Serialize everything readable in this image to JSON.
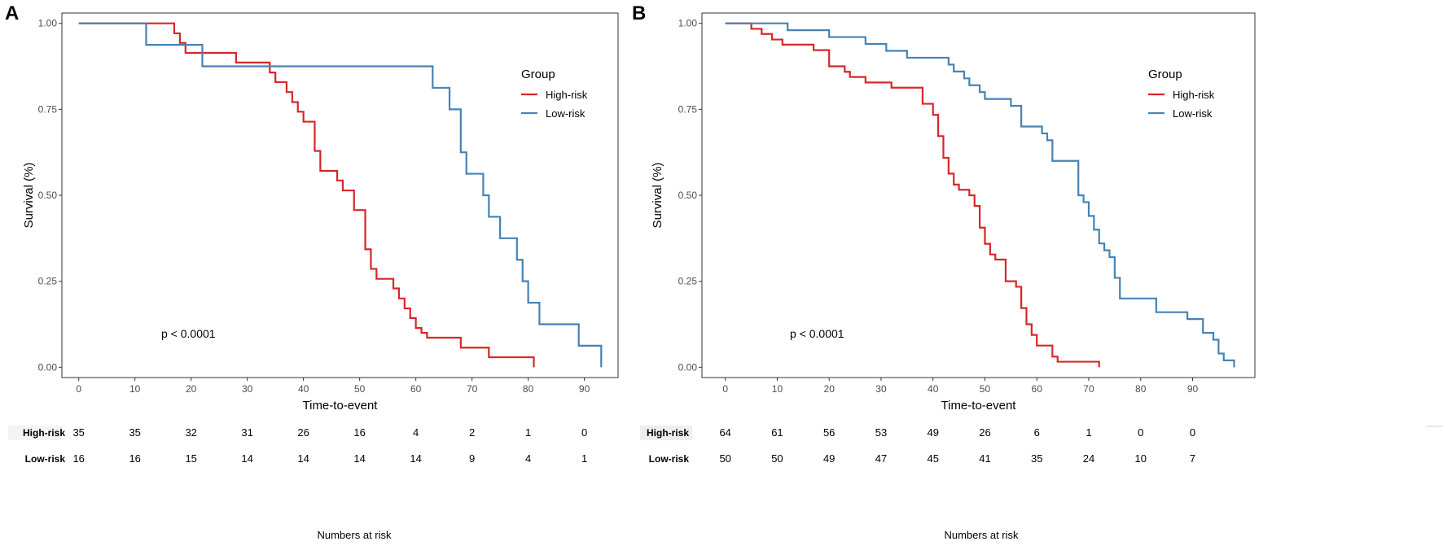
{
  "chart_data": [
    {
      "type": "line",
      "panel": "A",
      "title": "",
      "xlabel": "Time-to-event",
      "ylabel": "Survival (%)",
      "xlim": [
        -3,
        96
      ],
      "ylim": [
        -0.03,
        1.03
      ],
      "x_ticks": [
        0,
        10,
        20,
        30,
        40,
        50,
        60,
        70,
        80,
        90
      ],
      "x_tick_labels": [
        "0",
        "10",
        "20",
        "30",
        "40",
        "50",
        "60",
        "70",
        "80",
        "90"
      ],
      "y_ticks": [
        0,
        0.25,
        0.5,
        0.75,
        1.0
      ],
      "y_tick_labels": [
        "0.00",
        "0.25",
        "0.50",
        "0.75",
        "1.00"
      ],
      "grid": false,
      "legend": {
        "title": "Group",
        "position": "right"
      },
      "annotation": "p < 0.0001",
      "series": [
        {
          "name": "High-risk",
          "color": "#d62728",
          "steps": [
            [
              0,
              1.0
            ],
            [
              17,
              0.971
            ],
            [
              18,
              0.943
            ],
            [
              19,
              0.914
            ],
            [
              28,
              0.886
            ],
            [
              34,
              0.857
            ],
            [
              35,
              0.829
            ],
            [
              37,
              0.8
            ],
            [
              38,
              0.771
            ],
            [
              39,
              0.743
            ],
            [
              40,
              0.714
            ],
            [
              42,
              0.629
            ],
            [
              43,
              0.571
            ],
            [
              46,
              0.543
            ],
            [
              47,
              0.514
            ],
            [
              49,
              0.457
            ],
            [
              51,
              0.343
            ],
            [
              52,
              0.286
            ],
            [
              53,
              0.257
            ],
            [
              56,
              0.229
            ],
            [
              57,
              0.2
            ],
            [
              58,
              0.171
            ],
            [
              59,
              0.143
            ],
            [
              60,
              0.114
            ],
            [
              61,
              0.1
            ],
            [
              62,
              0.086
            ],
            [
              68,
              0.057
            ],
            [
              73,
              0.029
            ],
            [
              81,
              0.0
            ]
          ],
          "end": 81
        },
        {
          "name": "Low-risk",
          "color": "#4682b4",
          "steps": [
            [
              0,
              1.0
            ],
            [
              12,
              0.9375
            ],
            [
              22,
              0.875
            ],
            [
              63,
              0.8125
            ],
            [
              66,
              0.75
            ],
            [
              68,
              0.625
            ],
            [
              69,
              0.5625
            ],
            [
              72,
              0.5
            ],
            [
              73,
              0.4375
            ],
            [
              75,
              0.375
            ],
            [
              78,
              0.3125
            ],
            [
              79,
              0.25
            ],
            [
              80,
              0.1875
            ],
            [
              82,
              0.125
            ],
            [
              89,
              0.0625
            ],
            [
              93,
              0.0
            ]
          ],
          "end": 93
        }
      ],
      "risk_table": {
        "title": "Numbers at risk",
        "times": [
          0,
          10,
          20,
          30,
          40,
          50,
          60,
          70,
          80,
          90
        ],
        "rows": [
          {
            "label": "High-risk",
            "values": [
              "35",
              "35",
              "32",
              "31",
              "26",
              "16",
              "4",
              "2",
              "1",
              "0"
            ]
          },
          {
            "label": "Low-risk",
            "values": [
              "16",
              "16",
              "15",
              "14",
              "14",
              "14",
              "14",
              "9",
              "4",
              "1"
            ]
          }
        ]
      }
    },
    {
      "type": "line",
      "panel": "B",
      "title": "",
      "xlabel": "Time-to-event",
      "ylabel": "Survival (%)",
      "xlim": [
        -4.5,
        102
      ],
      "ylim": [
        -0.03,
        1.03
      ],
      "x_ticks": [
        0,
        10,
        20,
        30,
        40,
        50,
        60,
        70,
        80,
        90
      ],
      "x_tick_labels": [
        "0",
        "10",
        "20",
        "30",
        "40",
        "50",
        "60",
        "70",
        "80",
        "90"
      ],
      "y_ticks": [
        0,
        0.25,
        0.5,
        0.75,
        1.0
      ],
      "y_tick_labels": [
        "0.00",
        "0.25",
        "0.50",
        "0.75",
        "1.00"
      ],
      "grid": false,
      "legend": {
        "title": "Group",
        "position": "right"
      },
      "annotation": "p < 0.0001",
      "series": [
        {
          "name": "High-risk",
          "color": "#d62728",
          "steps": [
            [
              0,
              1.0
            ],
            [
              5,
              0.984
            ],
            [
              7,
              0.969
            ],
            [
              9,
              0.953
            ],
            [
              11,
              0.938
            ],
            [
              17,
              0.922
            ],
            [
              20,
              0.875
            ],
            [
              23,
              0.859
            ],
            [
              24,
              0.844
            ],
            [
              27,
              0.828
            ],
            [
              32,
              0.813
            ],
            [
              38,
              0.766
            ],
            [
              40,
              0.734
            ],
            [
              41,
              0.672
            ],
            [
              42,
              0.609
            ],
            [
              43,
              0.563
            ],
            [
              44,
              0.531
            ],
            [
              45,
              0.516
            ],
            [
              47,
              0.5
            ],
            [
              48,
              0.469
            ],
            [
              49,
              0.406
            ],
            [
              50,
              0.359
            ],
            [
              51,
              0.328
            ],
            [
              52,
              0.313
            ],
            [
              54,
              0.25
            ],
            [
              56,
              0.234
            ],
            [
              57,
              0.172
            ],
            [
              58,
              0.125
            ],
            [
              59,
              0.094
            ],
            [
              60,
              0.063
            ],
            [
              63,
              0.031
            ],
            [
              64,
              0.016
            ],
            [
              72,
              0.0
            ]
          ],
          "end": 72
        },
        {
          "name": "Low-risk",
          "color": "#4682b4",
          "steps": [
            [
              0,
              1.0
            ],
            [
              12,
              0.98
            ],
            [
              20,
              0.96
            ],
            [
              27,
              0.94
            ],
            [
              31,
              0.92
            ],
            [
              35,
              0.9
            ],
            [
              43,
              0.88
            ],
            [
              44,
              0.86
            ],
            [
              46,
              0.84
            ],
            [
              47,
              0.82
            ],
            [
              49,
              0.8
            ],
            [
              50,
              0.78
            ],
            [
              55,
              0.76
            ],
            [
              57,
              0.7
            ],
            [
              61,
              0.68
            ],
            [
              62,
              0.66
            ],
            [
              63,
              0.6
            ],
            [
              68,
              0.5
            ],
            [
              69,
              0.48
            ],
            [
              70,
              0.44
            ],
            [
              71,
              0.4
            ],
            [
              72,
              0.36
            ],
            [
              73,
              0.34
            ],
            [
              74,
              0.32
            ],
            [
              75,
              0.26
            ],
            [
              76,
              0.2
            ],
            [
              83,
              0.16
            ],
            [
              89,
              0.14
            ],
            [
              92,
              0.1
            ],
            [
              94,
              0.08
            ],
            [
              95,
              0.04
            ],
            [
              96,
              0.02
            ],
            [
              98,
              0.0
            ]
          ],
          "end": 98
        }
      ],
      "risk_table": {
        "title": "Numbers at risk",
        "times": [
          0,
          10,
          20,
          30,
          40,
          50,
          60,
          70,
          80,
          90
        ],
        "rows": [
          {
            "label": "High-risk",
            "values": [
              "64",
              "61",
              "56",
              "53",
              "49",
              "26",
              "6",
              "1",
              "0",
              "0"
            ]
          },
          {
            "label": "Low-risk",
            "values": [
              "50",
              "50",
              "49",
              "47",
              "45",
              "41",
              "35",
              "24",
              "10",
              "7"
            ]
          }
        ]
      }
    }
  ]
}
